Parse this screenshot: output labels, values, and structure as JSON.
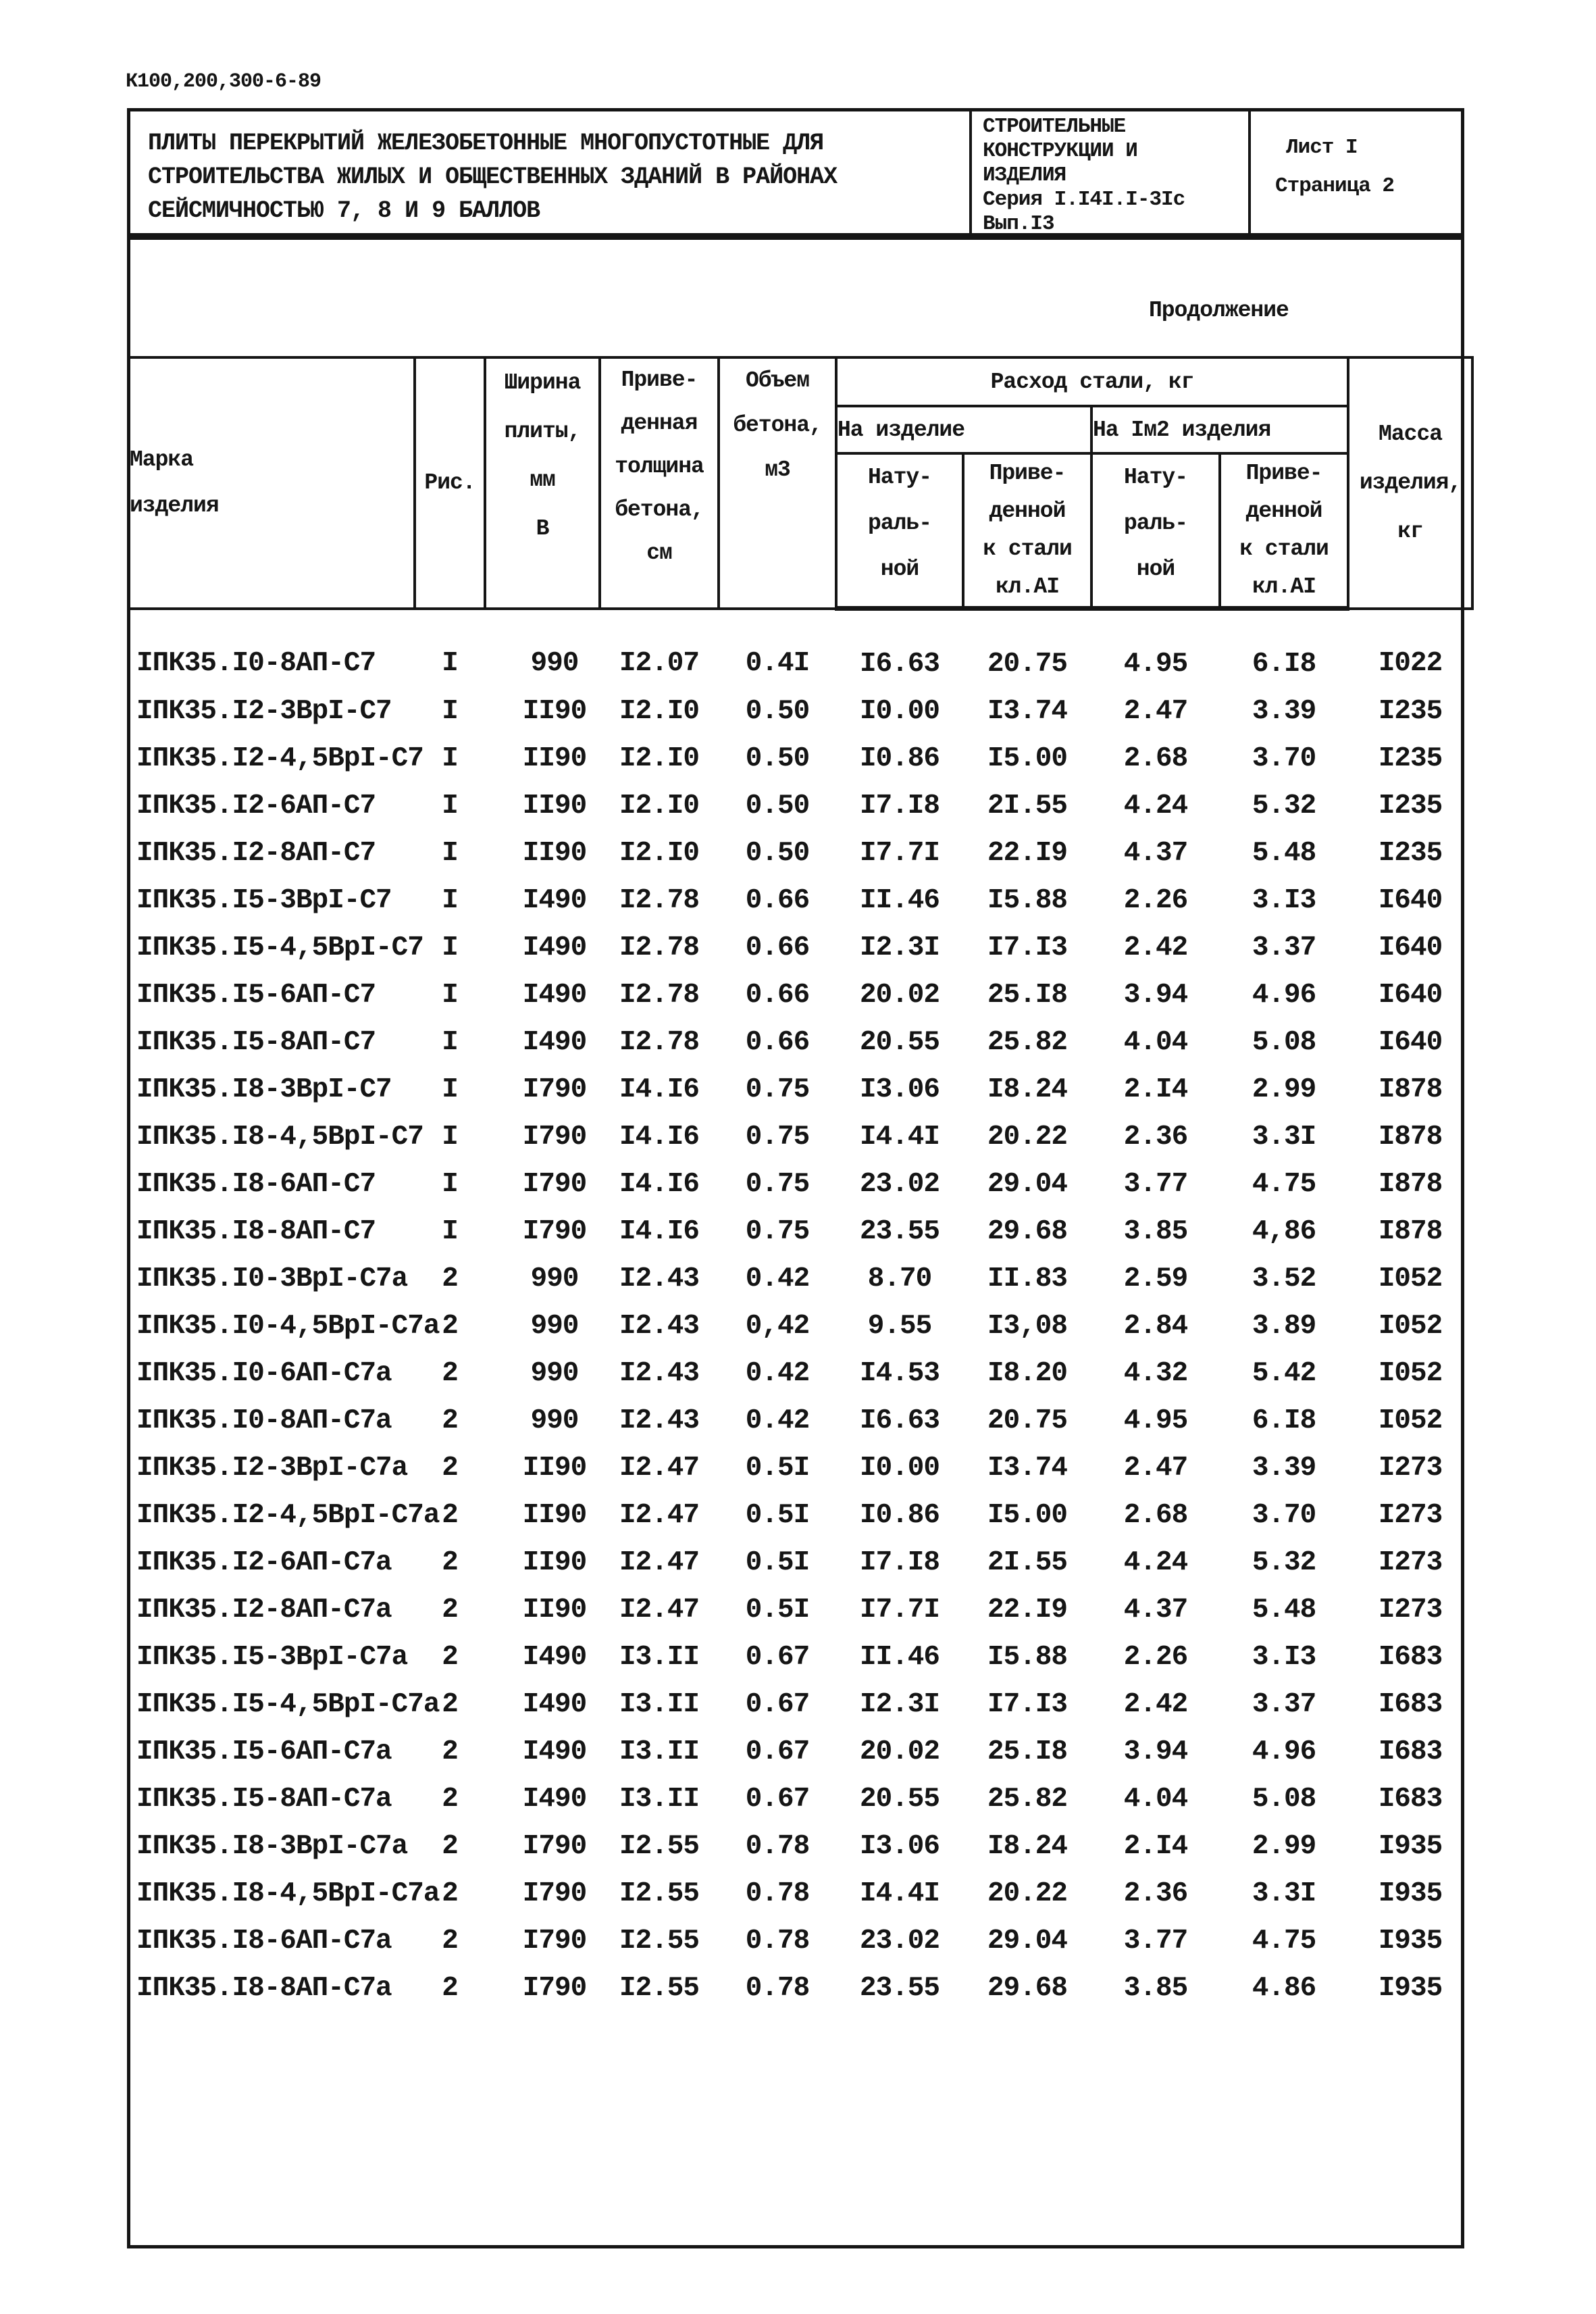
{
  "colors": {
    "ink": "#151515",
    "paper": "#ffffff"
  },
  "page": {
    "doc_number": "К100,200,300-6-89",
    "continuation_label": "Продолжение"
  },
  "header": {
    "title_lines": [
      "ПЛИТЫ ПЕРЕКРЫТИЙ ЖЕЛЕЗОБЕТОННЫЕ МНОГОПУСТОТНЫЕ ДЛЯ",
      "СТРОИТЕЛЬСТВА ЖИЛЫХ И ОБЩЕСТВЕННЫХ ЗДАНИЙ В РАЙОНАХ",
      "СЕЙСМИЧНОСТЬЮ 7, 8 И 9 БАЛЛОВ"
    ],
    "org_lines": [
      "СТРОИТЕЛЬНЫЕ",
      "КОНСТРУКЦИИ И",
      "ИЗДЕЛИЯ",
      "Серия I.I4I.I-3Iс",
      "Вып.I3"
    ],
    "sheet_label": "Лист I",
    "page_label": "Страница 2"
  },
  "table": {
    "header": {
      "mark_lines": [
        "Марка",
        "изделия"
      ],
      "figure": "Рис.",
      "width_lines": [
        "Ширина",
        "плиты,",
        "мм",
        "В"
      ],
      "thickness_lines": [
        "Приве-",
        "денная",
        "толщина",
        "бетона,",
        "см"
      ],
      "volume_lines": [
        "Объем",
        "бетона,",
        "м3"
      ],
      "steel_group": "Расход стали, кг",
      "per_item": "На изделие",
      "per_m2": "На Iм2 изделия",
      "natural_lines": [
        "Нату-",
        "раль-",
        "ной"
      ],
      "reduced_lines": [
        "Приве-",
        "денной",
        "к стали",
        "кл.АI"
      ],
      "mass_lines": [
        "Масса",
        "изделия,",
        "кг"
      ]
    },
    "col_keys": [
      "mark",
      "figure",
      "width",
      "thickness",
      "volume",
      "steel-item-natural",
      "steel-item-reduced",
      "steel-m2-natural",
      "steel-m2-reduced",
      "mass"
    ],
    "rows": [
      [
        "IПК35.I0-8АП-С7",
        "I",
        "990",
        "I2.07",
        "0.4I",
        "I6.63",
        "20.75",
        "4.95",
        "6.I8",
        "I022"
      ],
      [
        "IПК35.I2-3ВрI-С7",
        "I",
        "II90",
        "I2.I0",
        "0.50",
        "I0.00",
        "I3.74",
        "2.47",
        "3.39",
        "I235"
      ],
      [
        "IПК35.I2-4,5ВрI-С7",
        "I",
        "II90",
        "I2.I0",
        "0.50",
        "I0.86",
        "I5.00",
        "2.68",
        "3.70",
        "I235"
      ],
      [
        "IПК35.I2-6АП-С7",
        "I",
        "II90",
        "I2.I0",
        "0.50",
        "I7.I8",
        "2I.55",
        "4.24",
        "5.32",
        "I235"
      ],
      [
        "IПК35.I2-8АП-С7",
        "I",
        "II90",
        "I2.I0",
        "0.50",
        "I7.7I",
        "22.I9",
        "4.37",
        "5.48",
        "I235"
      ],
      [
        "IПК35.I5-3ВрI-С7",
        "I",
        "I490",
        "I2.78",
        "0.66",
        "II.46",
        "I5.88",
        "2.26",
        "3.I3",
        "I640"
      ],
      [
        "IПК35.I5-4,5ВрI-С7",
        "I",
        "I490",
        "I2.78",
        "0.66",
        "I2.3I",
        "I7.I3",
        "2.42",
        "3.37",
        "I640"
      ],
      [
        "IПК35.I5-6АП-С7",
        "I",
        "I490",
        "I2.78",
        "0.66",
        "20.02",
        "25.I8",
        "3.94",
        "4.96",
        "I640"
      ],
      [
        "IПК35.I5-8АП-С7",
        "I",
        "I490",
        "I2.78",
        "0.66",
        "20.55",
        "25.82",
        "4.04",
        "5.08",
        "I640"
      ],
      [
        "IПК35.I8-3ВрI-С7",
        "I",
        "I790",
        "I4.I6",
        "0.75",
        "I3.06",
        "I8.24",
        "2.I4",
        "2.99",
        "I878"
      ],
      [
        "IПК35.I8-4,5ВрI-С7",
        "I",
        "I790",
        "I4.I6",
        "0.75",
        "I4.4I",
        "20.22",
        "2.36",
        "3.3I",
        "I878"
      ],
      [
        "IПК35.I8-6АП-С7",
        "I",
        "I790",
        "I4.I6",
        "0.75",
        "23.02",
        "29.04",
        "3.77",
        "4.75",
        "I878"
      ],
      [
        "IПК35.I8-8АП-С7",
        "I",
        "I790",
        "I4.I6",
        "0.75",
        "23.55",
        "29.68",
        "3.85",
        "4,86",
        "I878"
      ],
      [
        "IПК35.I0-3ВрI-С7а",
        "2",
        "990",
        "I2.43",
        "0.42",
        "8.70",
        "II.83",
        "2.59",
        "3.52",
        "I052"
      ],
      [
        "IПК35.I0-4,5ВрI-С7а",
        "2",
        "990",
        "I2.43",
        "0,42",
        "9.55",
        "I3,08",
        "2.84",
        "3.89",
        "I052"
      ],
      [
        "IПК35.I0-6АП-С7а",
        "2",
        "990",
        "I2.43",
        "0.42",
        "I4.53",
        "I8.20",
        "4.32",
        "5.42",
        "I052"
      ],
      [
        "IПК35.I0-8АП-С7а",
        "2",
        "990",
        "I2.43",
        "0.42",
        "I6.63",
        "20.75",
        "4.95",
        "6.I8",
        "I052"
      ],
      [
        "IПК35.I2-3ВрI-С7а",
        "2",
        "II90",
        "I2.47",
        "0.5I",
        "I0.00",
        "I3.74",
        "2.47",
        "3.39",
        "I273"
      ],
      [
        "IПК35.I2-4,5ВрI-С7а",
        "2",
        "II90",
        "I2.47",
        "0.5I",
        "I0.86",
        "I5.00",
        "2.68",
        "3.70",
        "I273"
      ],
      [
        "IПК35.I2-6АП-С7а",
        "2",
        "II90",
        "I2.47",
        "0.5I",
        "I7.I8",
        "2I.55",
        "4.24",
        "5.32",
        "I273"
      ],
      [
        "IПК35.I2-8АП-С7а",
        "2",
        "II90",
        "I2.47",
        "0.5I",
        "I7.7I",
        "22.I9",
        "4.37",
        "5.48",
        "I273"
      ],
      [
        "IПК35.I5-3ВрI-С7а",
        "2",
        "I490",
        "I3.II",
        "0.67",
        "II.46",
        "I5.88",
        "2.26",
        "3.I3",
        "I683"
      ],
      [
        "IПК35.I5-4,5ВрI-С7а",
        "2",
        "I490",
        "I3.II",
        "0.67",
        "I2.3I",
        "I7.I3",
        "2.42",
        "3.37",
        "I683"
      ],
      [
        "IПК35.I5-6АП-С7а",
        "2",
        "I490",
        "I3.II",
        "0.67",
        "20.02",
        "25.I8",
        "3.94",
        "4.96",
        "I683"
      ],
      [
        "IПК35.I5-8АП-С7а",
        "2",
        "I490",
        "I3.II",
        "0.67",
        "20.55",
        "25.82",
        "4.04",
        "5.08",
        "I683"
      ],
      [
        "IПК35.I8-3ВрI-С7а",
        "2",
        "I790",
        "I2.55",
        "0.78",
        "I3.06",
        "I8.24",
        "2.I4",
        "2.99",
        "I935"
      ],
      [
        "IПК35.I8-4,5ВрI-С7а",
        "2",
        "I790",
        "I2.55",
        "0.78",
        "I4.4I",
        "20.22",
        "2.36",
        "3.3I",
        "I935"
      ],
      [
        "IПК35.I8-6АП-С7а",
        "2",
        "I790",
        "I2.55",
        "0.78",
        "23.02",
        "29.04",
        "3.77",
        "4.75",
        "I935"
      ],
      [
        "IПК35.I8-8АП-С7а",
        "2",
        "I790",
        "I2.55",
        "0.78",
        "23.55",
        "29.68",
        "3.85",
        "4.86",
        "I935"
      ]
    ]
  }
}
